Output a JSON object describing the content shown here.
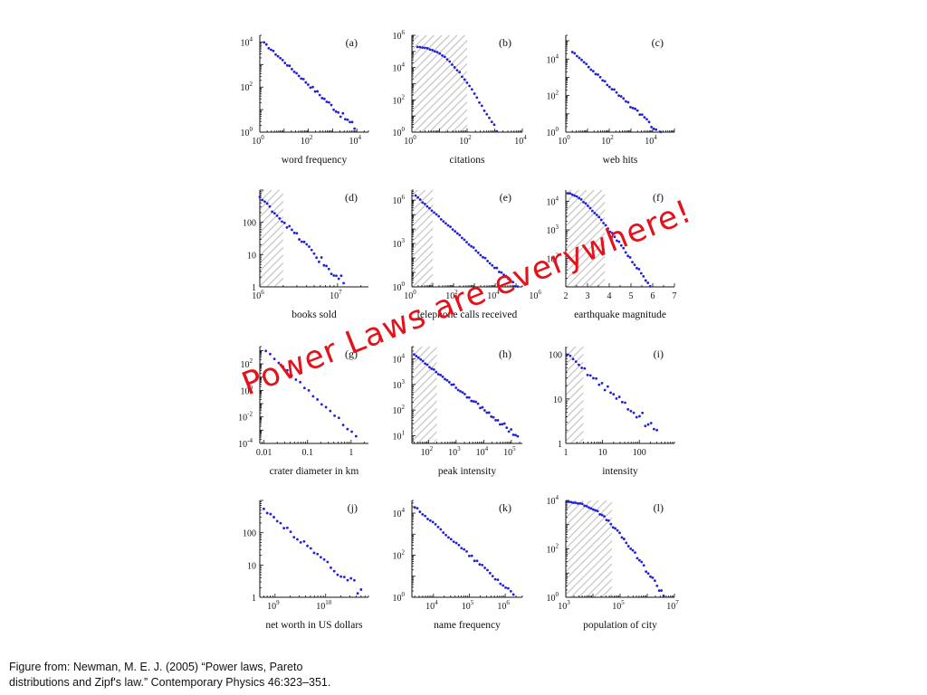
{
  "overlay_text": "Power Laws are everywhere!",
  "caption": {
    "line1": "Figure from: Newman, M. E. J. (2005) “Power laws, Pareto",
    "line2": "distributions and Zipf's law.” Contemporary Physics 46:323–351."
  },
  "colors": {
    "points": "#2020d8",
    "overlay": "#e3121b",
    "hatch": "#bfbfbf",
    "axis": "#111111"
  },
  "chart_data": [
    {
      "id": "a",
      "type": "scatter",
      "panel_label": "(a)",
      "xlabel": "word frequency",
      "ylabel": "",
      "xscale": "log",
      "yscale": "log",
      "xlim": [
        1,
        30000
      ],
      "ylim": [
        1,
        20000
      ],
      "xticks": [
        {
          "v": 1,
          "label": "10",
          "sup": "0"
        },
        {
          "v": 100,
          "label": "10",
          "sup": "2"
        },
        {
          "v": 10000,
          "label": "10",
          "sup": "4"
        }
      ],
      "yticks": [
        {
          "v": 1,
          "label": "10",
          "sup": "0"
        },
        {
          "v": 100,
          "label": "10",
          "sup": "2"
        },
        {
          "v": 10000,
          "label": "10",
          "sup": "4"
        }
      ],
      "shade": null,
      "curve": {
        "kind": "pl",
        "x0": 1.5,
        "x1": 8000,
        "y0": 9000,
        "alpha": 1.0
      },
      "n_points": 40,
      "jitter": 0.04
    },
    {
      "id": "b",
      "type": "scatter",
      "panel_label": "(b)",
      "xlabel": "citations",
      "ylabel": "",
      "xscale": "log",
      "yscale": "log",
      "xlim": [
        1,
        10000
      ],
      "ylim": [
        1,
        1000000
      ],
      "xticks": [
        {
          "v": 1,
          "label": "10",
          "sup": "0"
        },
        {
          "v": 100,
          "label": "10",
          "sup": "2"
        },
        {
          "v": 10000,
          "label": "10",
          "sup": "4"
        }
      ],
      "yticks": [
        {
          "v": 1,
          "label": "10",
          "sup": "0"
        },
        {
          "v": 100,
          "label": "10",
          "sup": "2"
        },
        {
          "v": 10000,
          "label": "10",
          "sup": "4"
        },
        {
          "v": 1000000,
          "label": "10",
          "sup": "6"
        }
      ],
      "shade": [
        1,
        100
      ],
      "curve": {
        "kind": "bend",
        "x0": 1.6,
        "x1": 5000,
        "y0": 200000,
        "xc": 18,
        "alpha": 2.9
      },
      "n_points": 40,
      "jitter": 0.03
    },
    {
      "id": "c",
      "type": "scatter",
      "panel_label": "(c)",
      "xlabel": "web hits",
      "ylabel": "",
      "xscale": "log",
      "yscale": "log",
      "xlim": [
        1,
        100000
      ],
      "ylim": [
        1,
        200000
      ],
      "xticks": [
        {
          "v": 1,
          "label": "10",
          "sup": "0"
        },
        {
          "v": 100,
          "label": "10",
          "sup": "2"
        },
        {
          "v": 10000,
          "label": "10",
          "sup": "4"
        }
      ],
      "yticks": [
        {
          "v": 1,
          "label": "10",
          "sup": "0"
        },
        {
          "v": 100,
          "label": "10",
          "sup": "2"
        },
        {
          "v": 10000,
          "label": "10",
          "sup": "4"
        }
      ],
      "shade": null,
      "curve": {
        "kind": "pl",
        "x0": 2,
        "x1": 30000,
        "y0": 25000,
        "alpha": 1.1
      },
      "n_points": 40,
      "jitter": 0.04
    },
    {
      "id": "d",
      "type": "scatter",
      "panel_label": "(d)",
      "xlabel": "books sold",
      "ylabel": "",
      "xscale": "log",
      "yscale": "log",
      "xlim": [
        1000000,
        25000000
      ],
      "ylim": [
        1,
        1000
      ],
      "xticks": [
        {
          "v": 1000000,
          "label": "10",
          "sup": "6"
        },
        {
          "v": 10000000,
          "label": "10",
          "sup": "7"
        }
      ],
      "yticks": [
        {
          "v": 1,
          "label": "1",
          "sup": ""
        },
        {
          "v": 10,
          "label": "10",
          "sup": ""
        },
        {
          "v": 100,
          "label": "100",
          "sup": ""
        }
      ],
      "shade": [
        1000000,
        2000000
      ],
      "curve": {
        "kind": "pl",
        "x0": 1000000,
        "x1": 12000000,
        "y0": 600,
        "alpha": 2.5
      },
      "n_points": 35,
      "jitter": 0.05
    },
    {
      "id": "e",
      "type": "scatter",
      "panel_label": "(e)",
      "xlabel": "telephone calls received",
      "ylabel": "",
      "xscale": "log",
      "yscale": "log",
      "xlim": [
        1,
        200000
      ],
      "ylim": [
        1,
        5000000
      ],
      "xticks": [
        {
          "v": 1,
          "label": "10",
          "sup": "0"
        },
        {
          "v": 100,
          "label": "10",
          "sup": "2"
        },
        {
          "v": 10000,
          "label": "10",
          "sup": "4"
        },
        {
          "v": 1000000,
          "label": "10",
          "sup": "6"
        }
      ],
      "yticks": [
        {
          "v": 1,
          "label": "10",
          "sup": "0"
        },
        {
          "v": 1000,
          "label": "10",
          "sup": "3"
        },
        {
          "v": 1000000,
          "label": "10",
          "sup": "6"
        }
      ],
      "shade": [
        1,
        10
      ],
      "curve": {
        "kind": "pl",
        "x0": 1.5,
        "x1": 120000,
        "y0": 2000000,
        "alpha": 1.3
      },
      "n_points": 45,
      "jitter": 0.03
    },
    {
      "id": "f",
      "type": "scatter",
      "panel_label": "(f)",
      "xlabel": "earthquake magnitude",
      "ylabel": "",
      "xscale": "linear",
      "yscale": "log",
      "xlim": [
        2,
        7
      ],
      "ylim": [
        10,
        25000
      ],
      "xticks": [
        {
          "v": 2,
          "label": "2",
          "sup": ""
        },
        {
          "v": 3,
          "label": "3",
          "sup": ""
        },
        {
          "v": 4,
          "label": "4",
          "sup": ""
        },
        {
          "v": 5,
          "label": "5",
          "sup": ""
        },
        {
          "v": 6,
          "label": "6",
          "sup": ""
        },
        {
          "v": 7,
          "label": "7",
          "sup": ""
        }
      ],
      "yticks": [
        {
          "v": 100,
          "label": "10",
          "sup": "2"
        },
        {
          "v": 1000,
          "label": "10",
          "sup": "3"
        },
        {
          "v": 10000,
          "label": "10",
          "sup": "4"
        }
      ],
      "shade": [
        2,
        3.8
      ],
      "curve": {
        "kind": "quake",
        "x0": 2.1,
        "x1": 6.7,
        "y0": 20000
      },
      "n_points": 46,
      "jitter": 0.02
    },
    {
      "id": "g",
      "type": "scatter",
      "panel_label": "(g)",
      "xlabel": "crater diameter in km",
      "ylabel": "",
      "xscale": "log",
      "yscale": "log",
      "xlim": [
        0.008,
        2.5
      ],
      "ylim": [
        0.0001,
        2000
      ],
      "xticks": [
        {
          "v": 0.01,
          "label": "0.01",
          "sup": ""
        },
        {
          "v": 0.1,
          "label": "0.1",
          "sup": ""
        },
        {
          "v": 1,
          "label": "1",
          "sup": ""
        }
      ],
      "yticks": [
        {
          "v": 0.0001,
          "label": "10",
          "sup": "-4"
        },
        {
          "v": 0.01,
          "label": "10",
          "sup": "-2"
        },
        {
          "v": 1,
          "label": "10",
          "sup": "0"
        },
        {
          "v": 100,
          "label": "10",
          "sup": "2"
        }
      ],
      "shade": null,
      "curve": {
        "kind": "pl",
        "x0": 0.011,
        "x1": 1.3,
        "y0": 1000,
        "alpha": 3.1
      },
      "n_points": 22,
      "jitter": 0.05
    },
    {
      "id": "h",
      "type": "scatter",
      "panel_label": "(h)",
      "xlabel": "peak intensity",
      "ylabel": "",
      "xscale": "log",
      "yscale": "log",
      "xlim": [
        25,
        250000
      ],
      "ylim": [
        5,
        30000
      ],
      "xticks": [
        {
          "v": 100,
          "label": "10",
          "sup": "2"
        },
        {
          "v": 1000,
          "label": "10",
          "sup": "3"
        },
        {
          "v": 10000,
          "label": "10",
          "sup": "4"
        },
        {
          "v": 100000,
          "label": "10",
          "sup": "5"
        }
      ],
      "yticks": [
        {
          "v": 10,
          "label": "10",
          "sup": "1"
        },
        {
          "v": 100,
          "label": "10",
          "sup": "2"
        },
        {
          "v": 1000,
          "label": "10",
          "sup": "3"
        },
        {
          "v": 10000,
          "label": "10",
          "sup": "4"
        }
      ],
      "shade": [
        25,
        200
      ],
      "curve": {
        "kind": "pl",
        "x0": 30,
        "x1": 170000,
        "y0": 15000,
        "alpha": 0.85
      },
      "n_points": 48,
      "jitter": 0.03
    },
    {
      "id": "i",
      "type": "scatter",
      "panel_label": "(i)",
      "xlabel": "intensity",
      "ylabel": "",
      "xscale": "log",
      "yscale": "log",
      "xlim": [
        1,
        900
      ],
      "ylim": [
        1,
        150
      ],
      "xticks": [
        {
          "v": 1,
          "label": "1",
          "sup": ""
        },
        {
          "v": 10,
          "label": "10",
          "sup": ""
        },
        {
          "v": 100,
          "label": "100",
          "sup": ""
        }
      ],
      "yticks": [
        {
          "v": 1,
          "label": "1",
          "sup": ""
        },
        {
          "v": 10,
          "label": "10",
          "sup": ""
        },
        {
          "v": 100,
          "label": "100",
          "sup": ""
        }
      ],
      "shade": [
        1,
        3
      ],
      "curve": {
        "kind": "pl",
        "x0": 1.1,
        "x1": 300,
        "y0": 95,
        "alpha": 0.7
      },
      "n_points": 32,
      "jitter": 0.05
    },
    {
      "id": "j",
      "type": "scatter",
      "panel_label": "(j)",
      "xlabel": "net worth in US dollars",
      "ylabel": "",
      "xscale": "log",
      "yscale": "log",
      "xlim": [
        500000000,
        70000000000
      ],
      "ylim": [
        1,
        1000
      ],
      "xticks": [
        {
          "v": 1000000000,
          "label": "10",
          "sup": "9"
        },
        {
          "v": 10000000000,
          "label": "10",
          "sup": "10"
        }
      ],
      "yticks": [
        {
          "v": 1,
          "label": "1",
          "sup": ""
        },
        {
          "v": 10,
          "label": "10",
          "sup": ""
        },
        {
          "v": 100,
          "label": "100",
          "sup": ""
        }
      ],
      "shade": null,
      "curve": {
        "kind": "pl",
        "x0": 600000000,
        "x1": 50000000000,
        "y0": 500,
        "alpha": 1.3
      },
      "n_points": 30,
      "jitter": 0.05
    },
    {
      "id": "k",
      "type": "scatter",
      "panel_label": "(k)",
      "xlabel": "name frequency",
      "ylabel": "",
      "xscale": "log",
      "yscale": "log",
      "xlim": [
        2500,
        3000000
      ],
      "ylim": [
        1,
        40000
      ],
      "xticks": [
        {
          "v": 10000,
          "label": "10",
          "sup": "4"
        },
        {
          "v": 100000,
          "label": "10",
          "sup": "5"
        },
        {
          "v": 1000000,
          "label": "10",
          "sup": "6"
        }
      ],
      "yticks": [
        {
          "v": 1,
          "label": "10",
          "sup": "0"
        },
        {
          "v": 100,
          "label": "10",
          "sup": "2"
        },
        {
          "v": 10000,
          "label": "10",
          "sup": "4"
        }
      ],
      "shade": null,
      "curve": {
        "kind": "pl",
        "x0": 3000,
        "x1": 2000000,
        "y0": 20000,
        "alpha": 1.5
      },
      "n_points": 40,
      "jitter": 0.04
    },
    {
      "id": "l",
      "type": "scatter",
      "panel_label": "(l)",
      "xlabel": "population of city",
      "ylabel": "",
      "xscale": "log",
      "yscale": "log",
      "xlim": [
        1000,
        10000000
      ],
      "ylim": [
        1,
        10000
      ],
      "xticks": [
        {
          "v": 1000,
          "label": "10",
          "sup": "3"
        },
        {
          "v": 100000,
          "label": "10",
          "sup": "5"
        },
        {
          "v": 10000000,
          "label": "10",
          "sup": "7"
        }
      ],
      "yticks": [
        {
          "v": 1,
          "label": "10",
          "sup": "0"
        },
        {
          "v": 100,
          "label": "10",
          "sup": "2"
        },
        {
          "v": 10000,
          "label": "10",
          "sup": "4"
        }
      ],
      "shade": [
        1000,
        50000
      ],
      "curve": {
        "kind": "bend",
        "x0": 1100,
        "x1": 4000000,
        "y0": 9000,
        "xc": 15000,
        "alpha": 1.6
      },
      "n_points": 45,
      "jitter": 0.03
    }
  ]
}
